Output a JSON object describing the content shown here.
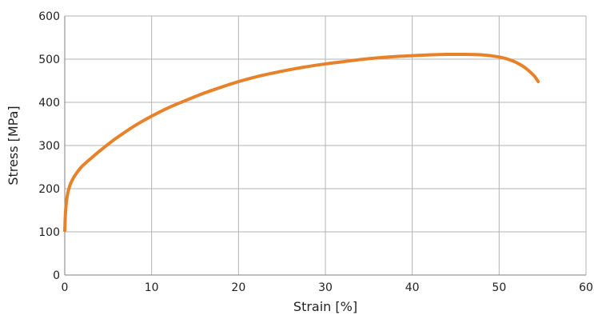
{
  "chart_data": {
    "type": "line",
    "title": "",
    "xlabel": "Strain [%]",
    "ylabel": "Stress [MPa]",
    "xlim": [
      0,
      60
    ],
    "ylim": [
      0,
      600
    ],
    "x_ticks": [
      "0",
      "10",
      "20",
      "30",
      "40",
      "50",
      "60"
    ],
    "y_ticks": [
      "0",
      "100",
      "200",
      "300",
      "400",
      "500",
      "600"
    ],
    "grid": true,
    "legend": "none",
    "series": [
      {
        "color": "#e8822a",
        "x": [
          0,
          0.1,
          0.3,
          0.6,
          1,
          1.5,
          2,
          3,
          4,
          5,
          6,
          8,
          10,
          12,
          14,
          16,
          18,
          20,
          22,
          24,
          26,
          28,
          30,
          32,
          34,
          36,
          38,
          40,
          42,
          44,
          46,
          48,
          49,
          50,
          51,
          52,
          53,
          54,
          54.5
        ],
        "y": [
          103,
          150,
          185,
          208,
          225,
          240,
          252,
          270,
          287,
          303,
          318,
          345,
          368,
          388,
          405,
          421,
          435,
          448,
          459,
          468,
          476,
          483,
          489,
          494,
          499,
          503,
          506,
          508,
          510,
          511,
          511,
          510,
          508,
          505,
          500,
          492,
          480,
          462,
          448
        ]
      }
    ]
  }
}
